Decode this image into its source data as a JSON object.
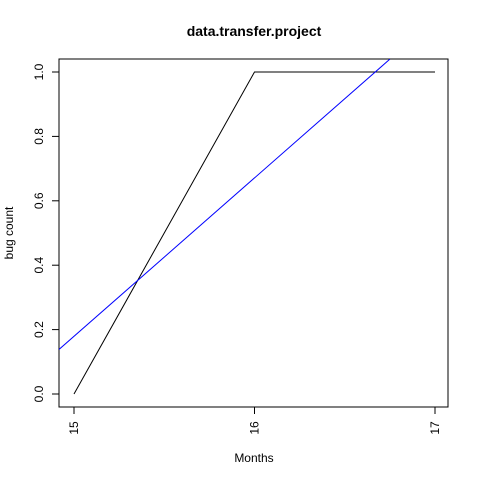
{
  "chart_data": {
    "type": "line",
    "title": "data.transfer.project",
    "xlabel": "Months",
    "ylabel": "bug count",
    "xlim": [
      15,
      17
    ],
    "ylim": [
      0,
      1
    ],
    "x_ticks": [
      15,
      16,
      17
    ],
    "y_ticks": [
      0.0,
      0.2,
      0.4,
      0.6,
      0.8,
      1.0
    ],
    "x_tick_labels": [
      "15",
      "16",
      "17"
    ],
    "y_tick_labels": [
      "0.0",
      "0.2",
      "0.4",
      "0.6",
      "0.8",
      "1.0"
    ],
    "grid": false,
    "series": [
      {
        "x": [
          15,
          16,
          17
        ],
        "values": [
          0.0,
          1.0,
          1.0
        ],
        "color": "#000000"
      },
      {
        "x": [
          14.9,
          16.75
        ],
        "values": [
          0.13,
          1.04
        ],
        "color": "#0000ff"
      }
    ]
  }
}
